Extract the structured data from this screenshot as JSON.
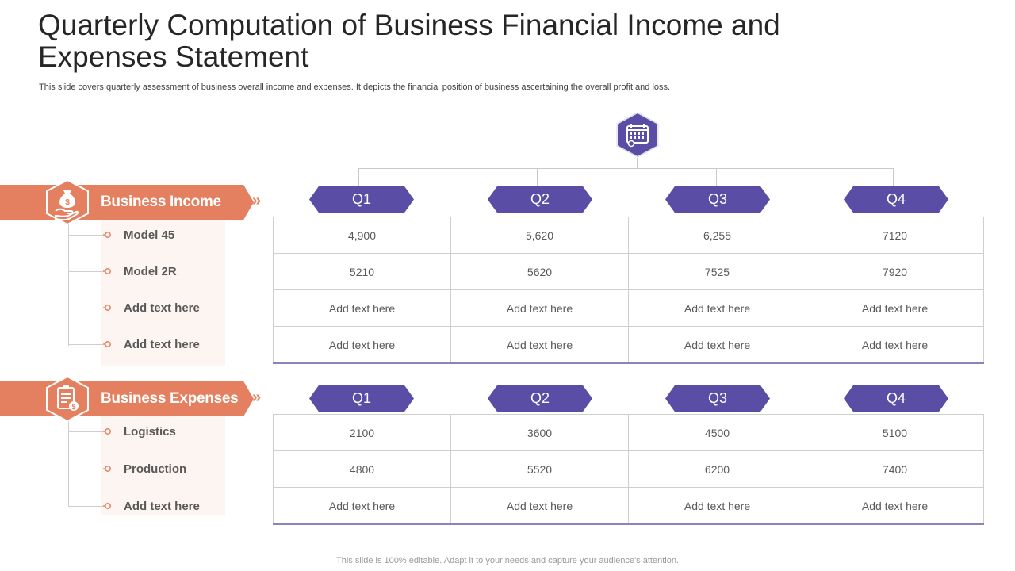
{
  "title": "Quarterly Computation  of Business Financial Income and Expenses Statement",
  "subtitle": "This slide covers quarterly assessment of  business overall income and expenses. It depicts the financial position of business ascertaining the overall profit and loss.",
  "footer": "This slide is 100% editable. Adapt it to your needs and capture your audience's attention.",
  "hub_icon": "calendar-icon",
  "colors": {
    "accent_orange": "#e4805f",
    "accent_purple": "#5a4da6",
    "panel_tint": "#fdf5f2"
  },
  "income": {
    "label": "Business Income",
    "icon": "money-bag-hand-icon",
    "chevron": "»",
    "quarters": [
      "Q1",
      "Q2",
      "Q3",
      "Q4"
    ],
    "items": [
      "Model 45",
      "Model 2R",
      "Add  text here",
      "Add  text here"
    ],
    "rows": [
      [
        "4,900",
        "5,620",
        "6,255",
        "7120"
      ],
      [
        "5210",
        "5620",
        "7525",
        "7920"
      ],
      [
        "Add text here",
        "Add text here",
        "Add text here",
        "Add text here"
      ],
      [
        "Add text here",
        "Add text here",
        "Add text here",
        "Add text here"
      ]
    ]
  },
  "expenses": {
    "label": "Business Expenses",
    "icon": "expense-clipboard-icon",
    "chevron": "»",
    "quarters": [
      "Q1",
      "Q2",
      "Q3",
      "Q4"
    ],
    "items": [
      "Logistics",
      "Production",
      "Add  text here"
    ],
    "rows": [
      [
        "2100",
        "3600",
        "4500",
        "5100"
      ],
      [
        "4800",
        "5520",
        "6200",
        "7400"
      ],
      [
        "Add text here",
        "Add text here",
        "Add text here",
        "Add text here"
      ]
    ]
  }
}
